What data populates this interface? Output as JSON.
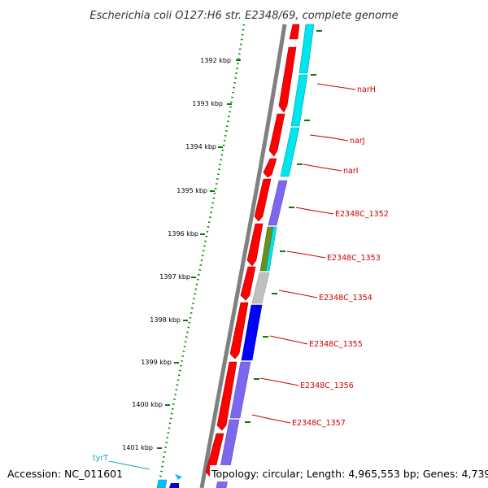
{
  "title": "Escherichia coli O127:H6 str. E2348/69, complete genome",
  "accession": "Accession: NC_011601",
  "topology": "Topology: circular; Length: 4,965,553 bp; Genes: 4,739",
  "ticks": [
    "1392 kbp",
    "1393 kbp",
    "1394 kbp",
    "1395 kbp",
    "1396 kbp",
    "1397 kbp",
    "1398 kbp",
    "1399 kbp",
    "1400 kbp",
    "1401 kbp"
  ],
  "genes": [
    "narH",
    "narJ",
    "narI",
    "E2348C_1352",
    "E2348C_1353",
    "E2348C_1354",
    "E2348C_1355",
    "E2348C_1356",
    "E2348C_1357"
  ],
  "trna": "tyrT",
  "colors": {
    "backbone": "#808080",
    "forward_cds": "#ff0000",
    "cyan": "#00e5ee",
    "violet": "#7b68ee",
    "olive": "#6b8e23",
    "grey": "#c0c0c0",
    "blue": "#0000ff",
    "tick": "#007f00",
    "label": "#cc0000",
    "trna": "#1aa3c7"
  }
}
